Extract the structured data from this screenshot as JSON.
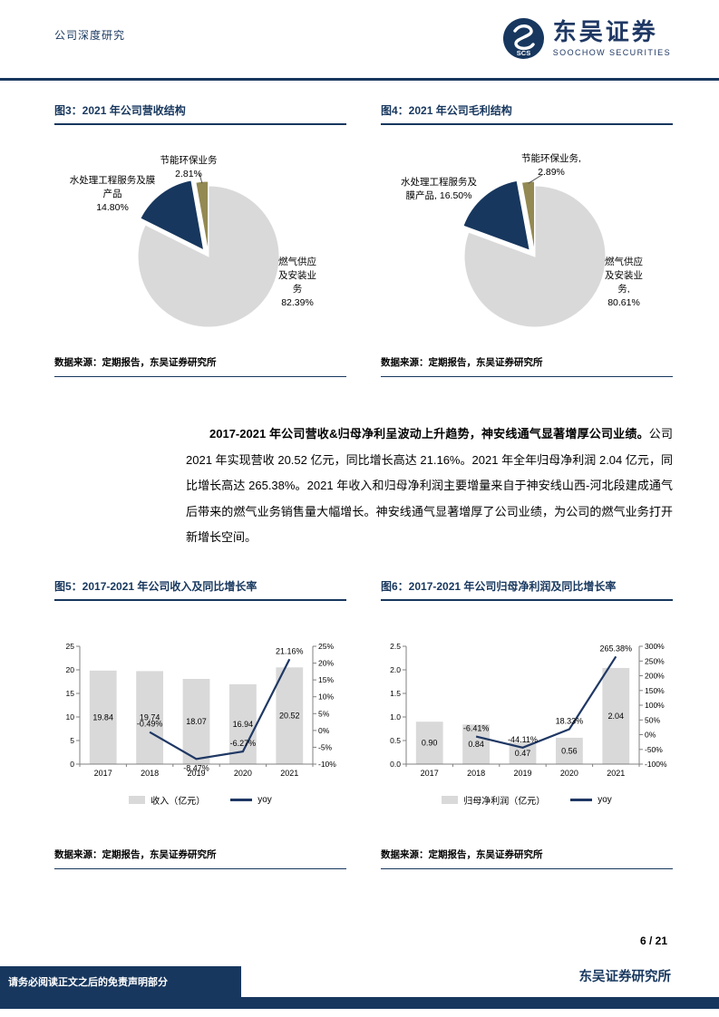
{
  "header": {
    "doc_type": "公司深度研究",
    "brand": {
      "cn": "东吴证券",
      "en": "SOOCHOW SECURITIES",
      "logo_text": "SCS"
    }
  },
  "figures": [
    {
      "title": "图3：2021 年公司营收结构",
      "source": "数据来源：定期报告，东吴证券研究所",
      "labels": {
        "top": "节能环保业务\n2.81%",
        "left": "水处理工程服务及膜\n产品\n14.80%",
        "right": "燃气供应\n及安装业\n务\n82.39%"
      }
    },
    {
      "title": "图4：2021 年公司毛利结构",
      "source": "数据来源：定期报告，东吴证券研究所",
      "labels": {
        "top": "节能环保业务,\n2.89%",
        "left": "水处理工程服务及\n膜产品, 16.50%",
        "right": "燃气供应\n及安装业\n务,\n80.61%"
      }
    },
    {
      "title": "图5：2017-2021 年公司收入及同比增长率",
      "source": "数据来源：定期报告，东吴证券研究所"
    },
    {
      "title": "图6：2017-2021 年公司归母净利润及同比增长率",
      "source": "数据来源：定期报告，东吴证券研究所"
    }
  ],
  "paragraph": {
    "lead": "2017-2021 年公司营收&归母净利呈波动上升趋势，神安线通气显著增厚公司业绩。",
    "body": "公司 2021 年实现营收 20.52 亿元，同比增长高达 21.16%。2021 年全年归母净利润 2.04 亿元，同比增长高达 265.38%。2021 年收入和归母净利润主要增量来自于神安线山西-河北段建成通气后带来的燃气业务销售量大幅增长。神安线通气显著增厚了公司业绩，为公司的燃气业务打开新增长空间。"
  },
  "footer": {
    "disclaimer": "请务必阅读正文之后的免责声明部分",
    "page_number": "6 / 21",
    "institute": "东吴证券研究所"
  },
  "chart_data": [
    {
      "type": "pie",
      "title": "2021 年公司营收结构",
      "start_angle": -90,
      "legend_position": "none",
      "slices": [
        {
          "label": "燃气供应及安装业务",
          "value": 82.39,
          "color": "#d9d9d9",
          "explode": 0
        },
        {
          "label": "水处理工程服务及膜产品",
          "value": 14.8,
          "color": "#17375e",
          "explode": 9
        },
        {
          "label": "节能环保业务",
          "value": 2.81,
          "color": "#938953",
          "explode": 5,
          "leader": [
            -3,
            -11
          ]
        }
      ]
    },
    {
      "type": "pie",
      "title": "2021 年公司毛利结构",
      "start_angle": -90,
      "legend_position": "none",
      "slices": [
        {
          "label": "燃气供应及安装业务",
          "value": 80.61,
          "color": "#d9d9d9",
          "explode": 0
        },
        {
          "label": "水处理工程服务及膜产品",
          "value": 16.5,
          "color": "#17375e",
          "explode": 9
        },
        {
          "label": "节能环保业务",
          "value": 2.89,
          "color": "#938953",
          "explode": 5,
          "leader": [
            16,
            -10
          ]
        }
      ]
    },
    {
      "type": "combo",
      "title": "2017-2021 年公司收入及同比增长率",
      "grid": false,
      "legend_position": "bottom",
      "categories": [
        "2017",
        "2018",
        "2019",
        "2020",
        "2021"
      ],
      "bar": {
        "name": "收入（亿元）",
        "color": "#d9d9d9",
        "values": [
          19.84,
          19.74,
          18.07,
          16.94,
          20.52
        ],
        "labels": [
          "19.84",
          "19.74",
          "18.07",
          "16.94",
          "20.52"
        ]
      },
      "line": {
        "name": "yoy",
        "color": "#1f3864",
        "values": [
          null,
          -0.49,
          -8.47,
          -6.27,
          21.16
        ],
        "labels": [
          "",
          "-0.49%",
          "-8.47%",
          "-6.27%",
          "21.16%"
        ],
        "label_pos": [
          "above",
          "above",
          "below",
          "above",
          "above"
        ]
      },
      "left_axis": {
        "min": 0,
        "max": 25,
        "step": 5,
        "decimals": 0
      },
      "right_axis": {
        "min": -10,
        "max": 25,
        "step": 5,
        "suffix": "%"
      }
    },
    {
      "type": "combo",
      "title": "2017-2021 年公司归母净利润及同比增长率",
      "grid": false,
      "legend_position": "bottom",
      "categories": [
        "2017",
        "2018",
        "2019",
        "2020",
        "2021"
      ],
      "bar": {
        "name": "归母净利润（亿元）",
        "color": "#d9d9d9",
        "values": [
          0.9,
          0.84,
          0.47,
          0.56,
          2.04
        ],
        "labels": [
          "0.90",
          "0.84",
          "0.47",
          "0.56",
          "2.04"
        ]
      },
      "line": {
        "name": "yoy",
        "color": "#1f3864",
        "values": [
          null,
          -6.41,
          -44.11,
          18.33,
          265.38
        ],
        "labels": [
          "",
          "-6.41%",
          "-44.11%",
          "18.33%",
          "265.38%"
        ],
        "label_pos": [
          "above",
          "above",
          "above",
          "above",
          "above"
        ]
      },
      "left_axis": {
        "min": 0,
        "max": 2.5,
        "step": 0.5,
        "decimals": 1
      },
      "right_axis": {
        "min": -100,
        "max": 300,
        "step": 50,
        "suffix": "%"
      }
    }
  ]
}
